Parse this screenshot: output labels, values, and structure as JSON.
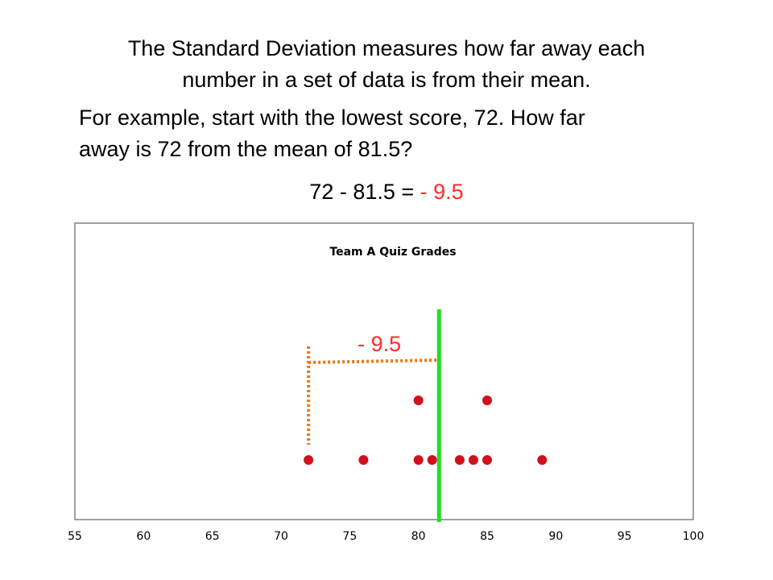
{
  "text": {
    "intro_line1": "The Standard Deviation measures how far away each",
    "intro_line2": "number in a set of data is from their mean.",
    "example_line1": "For example,  start with the lowest score, 72.  How far",
    "example_line2": "away is 72 from the mean of 81.5?",
    "equation_lhs": "72 - 81.5 = ",
    "equation_rhs": "- 9.5"
  },
  "colors": {
    "points": "#d0101a",
    "mean_line": "#22dd22",
    "deviation_bracket": "#ee7711",
    "negative_text": "#ff2a2a",
    "frame": "#808080"
  },
  "chart_data": {
    "type": "scatter",
    "title": "Team A Quiz Grades",
    "xlabel": "",
    "ylabel": "",
    "xlim": [
      55,
      100
    ],
    "xticks": [
      55,
      60,
      65,
      70,
      75,
      80,
      85,
      90,
      95,
      100
    ],
    "points": [
      {
        "x": 72,
        "level": 1
      },
      {
        "x": 76,
        "level": 1
      },
      {
        "x": 80,
        "level": 1
      },
      {
        "x": 80,
        "level": 2
      },
      {
        "x": 81,
        "level": 1
      },
      {
        "x": 83,
        "level": 1
      },
      {
        "x": 84,
        "level": 1
      },
      {
        "x": 85,
        "level": 1
      },
      {
        "x": 85,
        "level": 2
      },
      {
        "x": 89,
        "level": 1
      }
    ],
    "mean": 81.5,
    "deviation": {
      "from": 72,
      "to": 81.5,
      "label": "- 9.5"
    },
    "grid": false
  }
}
